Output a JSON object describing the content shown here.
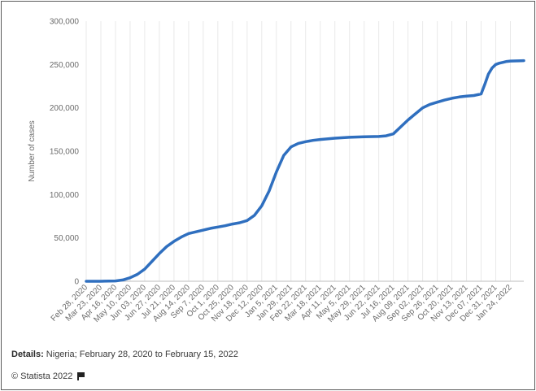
{
  "chart_data": {
    "type": "line",
    "title": "",
    "xlabel": "",
    "ylabel": "Number of cases",
    "ylim": [
      0,
      300000
    ],
    "yticks": [
      0,
      50000,
      100000,
      150000,
      200000,
      250000,
      300000
    ],
    "ytick_labels": [
      "0",
      "50,000",
      "100,000",
      "150,000",
      "200,000",
      "250,000",
      "300,000"
    ],
    "xtick_labels": [
      "Feb 28, 2020",
      "Mar 23, 2020",
      "Apr 16, 2020",
      "May 10, 2020",
      "Jun 03, 2020",
      "Jun 27, 2020",
      "Jul 21, 2020",
      "Aug 14, 2020",
      "Sep 7, 2020",
      "Oct 1, 2020",
      "Oct 25, 2020",
      "Nov 18, 2020",
      "Dec 12, 2020",
      "Jan 5, 2021",
      "Jan 29, 2021",
      "Feb 22, 2021",
      "Mar 18, 2021",
      "Apr 11, 2021",
      "May 5, 2021",
      "May 29, 2021",
      "Jun 22, 2021",
      "Jul 16, 2021",
      "Aug 09, 2021",
      "Sep 02, 2021",
      "Sep 26, 2021",
      "Oct 20, 2021",
      "Nov 13, 2021",
      "Dec 07, 2021",
      "Dec 31, 2021",
      "Jan 24, 2022"
    ],
    "grid": "vertical",
    "line_color": "#2f6fbf",
    "series": [
      {
        "x": [
          "2020-02-28",
          "2020-03-23",
          "2020-04-16",
          "2020-04-28",
          "2020-05-10",
          "2020-05-22",
          "2020-06-03",
          "2020-06-15",
          "2020-06-27",
          "2020-07-09",
          "2020-07-21",
          "2020-08-02",
          "2020-08-14",
          "2020-08-26",
          "2020-09-07",
          "2020-09-19",
          "2020-10-01",
          "2020-10-13",
          "2020-10-25",
          "2020-11-06",
          "2020-11-18",
          "2020-11-30",
          "2020-12-12",
          "2020-12-24",
          "2021-01-05",
          "2021-01-17",
          "2021-01-29",
          "2021-02-10",
          "2021-02-22",
          "2021-03-06",
          "2021-03-18",
          "2021-04-11",
          "2021-05-05",
          "2021-05-29",
          "2021-06-22",
          "2021-07-04",
          "2021-07-16",
          "2021-07-28",
          "2021-08-09",
          "2021-08-21",
          "2021-09-02",
          "2021-09-14",
          "2021-09-26",
          "2021-10-08",
          "2021-10-20",
          "2021-11-01",
          "2021-11-13",
          "2021-11-25",
          "2021-12-07",
          "2021-12-13",
          "2021-12-19",
          "2021-12-25",
          "2021-12-31",
          "2022-01-06",
          "2022-01-12",
          "2022-01-18",
          "2022-01-24",
          "2022-02-05",
          "2022-02-15"
        ],
        "y": [
          1,
          40,
          400,
          1500,
          4000,
          8000,
          14000,
          23000,
          32000,
          40000,
          46000,
          51000,
          55000,
          57000,
          59000,
          61000,
          62500,
          64000,
          66000,
          67500,
          70000,
          76000,
          87000,
          104000,
          126000,
          145000,
          155000,
          159000,
          161000,
          162500,
          163500,
          165000,
          166000,
          166600,
          167000,
          167700,
          170000,
          178000,
          186000,
          193000,
          200000,
          204000,
          206500,
          209000,
          211000,
          212500,
          213500,
          214200,
          216000,
          227000,
          239000,
          246000,
          250000,
          251500,
          252500,
          253500,
          254000,
          254200,
          254400
        ]
      }
    ]
  },
  "details": {
    "label": "Details:",
    "text": " Nigeria; February 28, 2020 to February 15, 2022"
  },
  "footer": {
    "copyright": "© Statista 2022",
    "flag_icon": "flag-icon"
  }
}
